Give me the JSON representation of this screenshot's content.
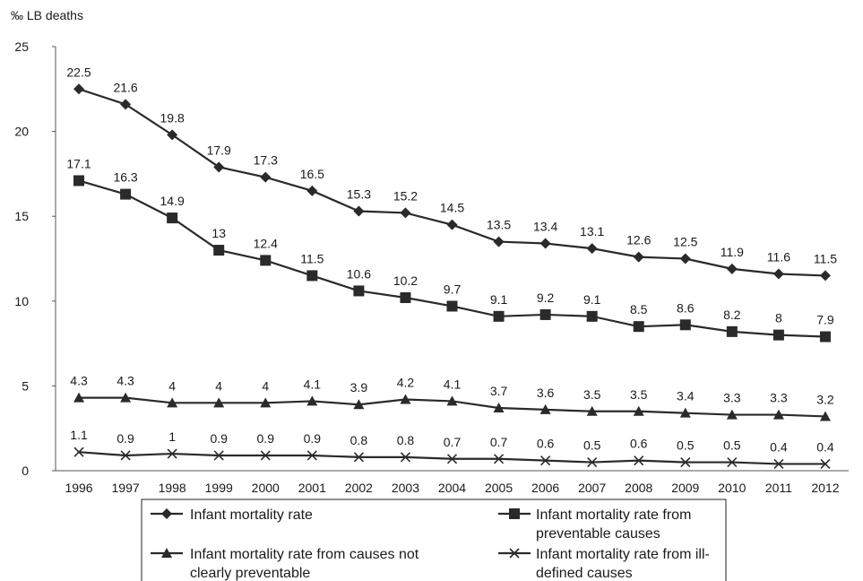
{
  "chart_data": {
    "type": "line",
    "ylabel": "‰ LB deaths",
    "ylim": [
      0,
      25
    ],
    "yticks": [
      "0",
      "5",
      "10",
      "15",
      "20",
      "25"
    ],
    "grid": false,
    "legend_position": "bottom",
    "categories": [
      "1996",
      "1997",
      "1998",
      "1999",
      "2000",
      "2001",
      "2002",
      "2003",
      "2004",
      "2005",
      "2006",
      "2007",
      "2008",
      "2009",
      "2010",
      "2011",
      "2012"
    ],
    "series": [
      {
        "name": "Infant mortality rate",
        "marker": "diamond",
        "values": [
          22.5,
          21.6,
          19.8,
          17.9,
          17.3,
          16.5,
          15.3,
          15.2,
          14.5,
          13.5,
          13.4,
          13.1,
          12.6,
          12.5,
          11.9,
          11.6,
          11.5
        ],
        "labels": [
          "22.5",
          "21.6",
          "19.8",
          "17.9",
          "17.3",
          "16.5",
          "15.3",
          "15.2",
          "14.5",
          "13.5",
          "13.4",
          "13.1",
          "12.6",
          "12.5",
          "11.9",
          "11.6",
          "11.5"
        ]
      },
      {
        "name": "Infant mortality rate from preventable causes",
        "marker": "square",
        "values": [
          17.1,
          16.3,
          14.9,
          13.0,
          12.4,
          11.5,
          10.6,
          10.2,
          9.7,
          9.1,
          9.2,
          9.1,
          8.5,
          8.6,
          8.2,
          8.0,
          7.9
        ],
        "labels": [
          "17.1",
          "16.3",
          "14.9",
          "13",
          "12.4",
          "11.5",
          "10.6",
          "10.2",
          "9.7",
          "9.1",
          "9.2",
          "9.1",
          "8.5",
          "8.6",
          "8.2",
          "8",
          "7.9"
        ]
      },
      {
        "name": "Infant mortality rate from causes not clearly preventable",
        "marker": "triangle",
        "values": [
          4.3,
          4.3,
          4.0,
          4.0,
          4.0,
          4.1,
          3.9,
          4.2,
          4.1,
          3.7,
          3.6,
          3.5,
          3.5,
          3.4,
          3.3,
          3.3,
          3.2
        ],
        "labels": [
          "4.3",
          "4.3",
          "4",
          "4",
          "4",
          "4.1",
          "3.9",
          "4.2",
          "4.1",
          "3.7",
          "3.6",
          "3.5",
          "3.5",
          "3.4",
          "3.3",
          "3.3",
          "3.2"
        ]
      },
      {
        "name": "Infant mortality rate from ill-defined causes",
        "marker": "x",
        "values": [
          1.1,
          0.9,
          1.0,
          0.9,
          0.9,
          0.9,
          0.8,
          0.8,
          0.7,
          0.7,
          0.6,
          0.5,
          0.6,
          0.5,
          0.5,
          0.4,
          0.4
        ],
        "labels": [
          "1.1",
          "0.9",
          "1",
          "0.9",
          "0.9",
          "0.9",
          "0.8",
          "0.8",
          "0.7",
          "0.7",
          "0.6",
          "0.5",
          "0.6",
          "0.5",
          "0.5",
          "0.4",
          "0.4"
        ]
      }
    ],
    "legend": {
      "entries": [
        {
          "line1": "Infant mortality rate",
          "line2": ""
        },
        {
          "line1": "Infant mortality rate from",
          "line2": "preventable causes"
        },
        {
          "line1": "Infant mortality rate from causes not",
          "line2": "clearly preventable"
        },
        {
          "line1": "Infant mortality rate from ill-",
          "line2": "defined causes"
        }
      ]
    },
    "colors": {
      "line": "#2a2a2a",
      "text": "#1a1a1a",
      "axis": "#555555"
    }
  }
}
